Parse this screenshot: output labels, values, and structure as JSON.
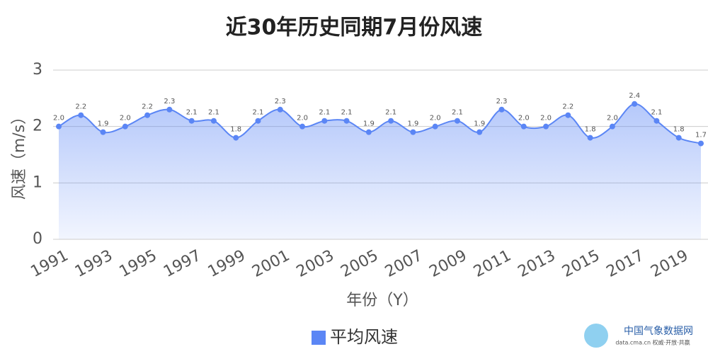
{
  "chart_data": {
    "type": "line",
    "title": "近30年历史同期7月份风速",
    "y_label": "风速（m/s）",
    "x_label": "年份（Y）",
    "categories": [
      "1991",
      null,
      "1993",
      null,
      "1995",
      null,
      "1997",
      null,
      "1999",
      null,
      "2001",
      null,
      "2003",
      null,
      "2005",
      null,
      "2007",
      null,
      "2009",
      null,
      "2011",
      null,
      "2013",
      null,
      "2015",
      null,
      "2017",
      null,
      "2019",
      null
    ],
    "series": [
      {
        "name": "平均风速",
        "color": "#5b86f5",
        "values": [
          2.0,
          2.2,
          1.9,
          2.0,
          2.2,
          2.3,
          2.1,
          2.1,
          1.8,
          2.1,
          2.3,
          2.0,
          2.1,
          2.1,
          1.9,
          2.1,
          1.9,
          2.0,
          2.1,
          1.9,
          2.3,
          2.0,
          2.0,
          2.2,
          1.8,
          2.0,
          2.4,
          2.1,
          1.8,
          1.7
        ],
        "value_labels": [
          "2.0",
          "2.2",
          "1.9",
          "2.0",
          "2.2",
          "2.3",
          "2.1",
          "2.1",
          "1.8",
          "2.1",
          "2.3",
          "2.0",
          "2.1",
          "2.1",
          "1.9",
          "2.1",
          "1.9",
          "2.0",
          "2.1",
          "1.9",
          "2.3",
          "2.0",
          "2.0",
          "2.2",
          "1.8",
          "2.0",
          "2.4",
          "2.1",
          "1.8",
          "1.7"
        ]
      }
    ],
    "ylim": [
      0,
      3
    ],
    "yticks": [
      0,
      1,
      2,
      3
    ],
    "grid": true,
    "area": true,
    "smooth": true,
    "legend": "bottom"
  },
  "logo": {
    "name": "中国气象数据网",
    "tagline": "data.cma.cn 权威·开放·共赢"
  }
}
